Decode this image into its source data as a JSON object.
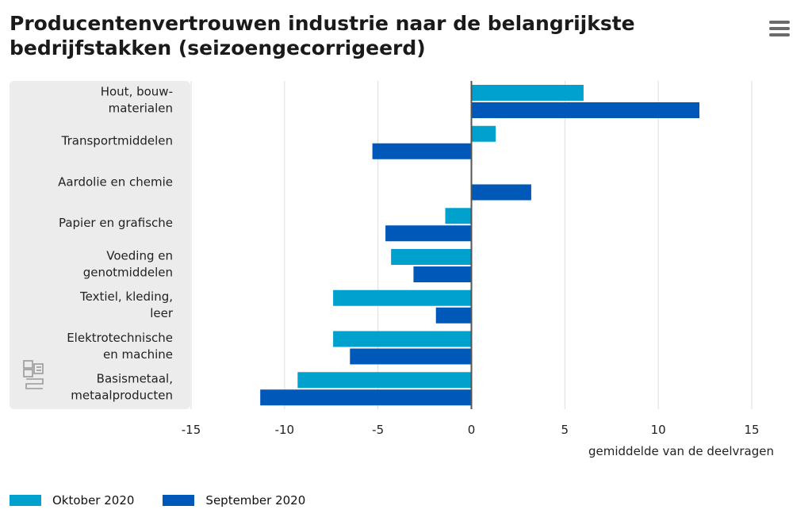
{
  "title": "Producentenvertrouwen industrie naar de belangrijkste bedrijfstakken (seizoengecorrigeerd)",
  "menu_icon": "hamburger-menu-icon",
  "logo_icon": "cbs-logo",
  "chart_data": {
    "type": "bar",
    "orientation": "horizontal",
    "categories": [
      "Hout, bouw-\nmaterialen",
      "Transportmiddelen",
      "Aardolie en chemie",
      "Papier en grafische",
      "Voeding en\ngenotmiddelen",
      "Textiel, kleding,\nleer",
      "Elektrotechnische\nen machine",
      "Basismetaal,\nmetaalproducten"
    ],
    "series": [
      {
        "name": "Oktober 2020",
        "color": "#00a1cd",
        "values": [
          6.0,
          1.3,
          0.0,
          -1.4,
          -4.3,
          -7.4,
          -7.4,
          -9.3
        ]
      },
      {
        "name": "September 2020",
        "color": "#0058b8",
        "values": [
          12.2,
          -5.3,
          3.2,
          -4.6,
          -3.1,
          -1.9,
          -6.5,
          -11.3
        ]
      }
    ],
    "xlim": [
      -15,
      15
    ],
    "xticks": [
      "-15",
      "-10",
      "-5",
      "0",
      "5",
      "10",
      "15"
    ],
    "xlabel": "gemiddelde van de deelvragen",
    "grid": true,
    "legend_position": "bottom-left"
  }
}
